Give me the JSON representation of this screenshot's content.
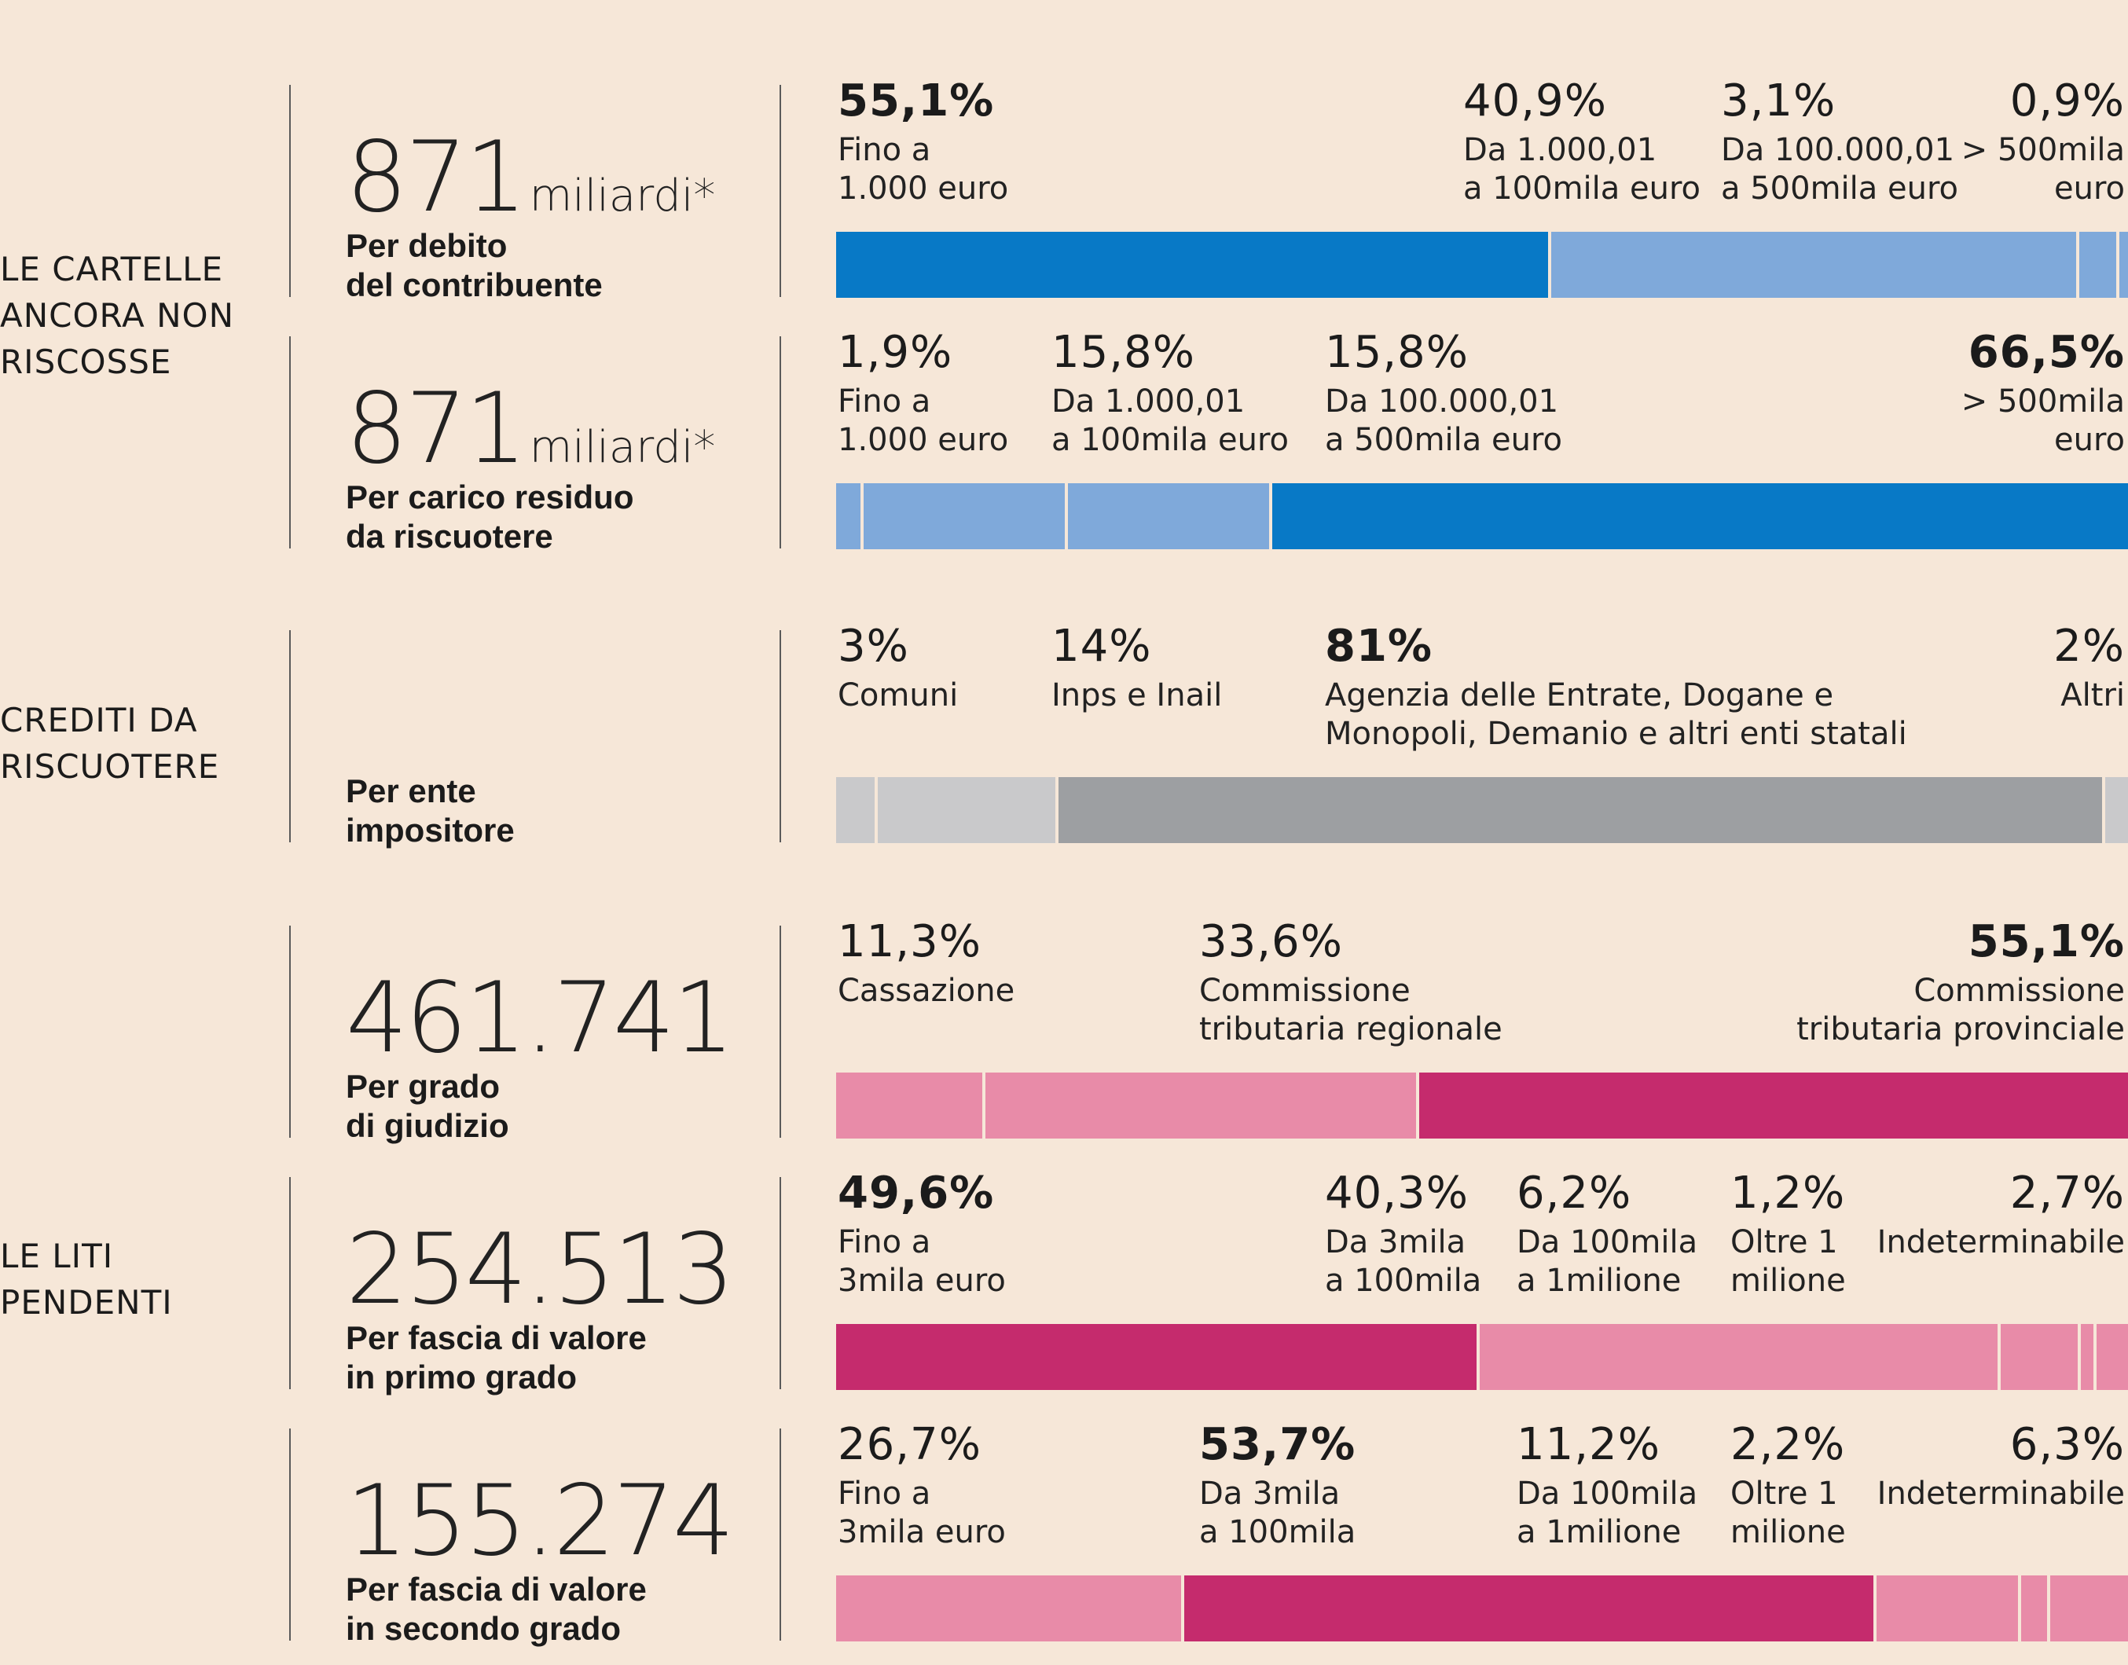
{
  "sections": [
    {
      "id": "cartelle",
      "title": "LE CARTELLE\nANCORA NON\nRISCOSSE",
      "rows": [
        {
          "big_number": "871",
          "unit": "miliardi*",
          "caption": "Per debito\ndel contribuente",
          "segments": [
            {
              "pct_label": "55,1%",
              "value": 55.1,
              "desc": "Fino a\n1.000 euro",
              "emphasis": true
            },
            {
              "pct_label": "40,9%",
              "value": 40.9,
              "desc": "Da 1.000,01\na 100mila euro",
              "emphasis": false
            },
            {
              "pct_label": "3,1%",
              "value": 3.1,
              "desc": "Da 100.000,01\na 500mila euro",
              "emphasis": false
            },
            {
              "pct_label": "0,9%",
              "value": 0.9,
              "desc": "> 500mila\neuro",
              "emphasis": false
            }
          ]
        },
        {
          "big_number": "871",
          "unit": "miliardi*",
          "caption": "Per carico residuo\nda riscuotere",
          "segments": [
            {
              "pct_label": "1,9%",
              "value": 1.9,
              "desc": "Fino a\n1.000 euro",
              "emphasis": false
            },
            {
              "pct_label": "15,8%",
              "value": 15.8,
              "desc": "Da 1.000,01\na 100mila euro",
              "emphasis": false
            },
            {
              "pct_label": "15,8%",
              "value": 15.8,
              "desc": "Da 100.000,01\na 500mila euro",
              "emphasis": false
            },
            {
              "pct_label": "66,5%",
              "value": 66.5,
              "desc": "> 500mila\neuro",
              "emphasis": true
            }
          ]
        }
      ]
    },
    {
      "id": "crediti",
      "title": "CREDITI DA\nRISCUOTERE",
      "rows": [
        {
          "big_number": "",
          "unit": "",
          "caption": "Per ente\nimpositore",
          "segments": [
            {
              "pct_label": "3%",
              "value": 3,
              "desc": "Comuni",
              "emphasis": false
            },
            {
              "pct_label": "14%",
              "value": 14,
              "desc": "Inps e Inail",
              "emphasis": false
            },
            {
              "pct_label": "81%",
              "value": 81,
              "desc": "Agenzia delle Entrate, Dogane e\nMonopoli, Demanio e altri enti statali",
              "emphasis": true
            },
            {
              "pct_label": "2%",
              "value": 2,
              "desc": "Altri",
              "emphasis": false
            }
          ]
        }
      ]
    },
    {
      "id": "liti",
      "title": "LE LITI\nPENDENTI",
      "rows": [
        {
          "big_number": "461.741",
          "unit": "",
          "caption": "Per grado\ndi giudizio",
          "segments": [
            {
              "pct_label": "11,3%",
              "value": 11.3,
              "desc": "Cassazione",
              "emphasis": false
            },
            {
              "pct_label": "33,6%",
              "value": 33.6,
              "desc": "Commissione\ntributaria regionale",
              "emphasis": false
            },
            {
              "pct_label": "55,1%",
              "value": 55.1,
              "desc": "Commissione\ntributaria provinciale",
              "emphasis": true
            }
          ]
        },
        {
          "big_number": "254.513",
          "unit": "",
          "caption": "Per fascia di valore\nin primo grado",
          "segments": [
            {
              "pct_label": "49,6%",
              "value": 49.6,
              "desc": "Fino a\n3mila euro",
              "emphasis": true
            },
            {
              "pct_label": "40,3%",
              "value": 40.3,
              "desc": "Da 3mila\na 100mila",
              "emphasis": false
            },
            {
              "pct_label": "6,2%",
              "value": 6.2,
              "desc": "Da 100mila\na 1milione",
              "emphasis": false
            },
            {
              "pct_label": "1,2%",
              "value": 1.2,
              "desc": "Oltre 1\nmilione",
              "emphasis": false
            },
            {
              "pct_label": "2,7%",
              "value": 2.7,
              "desc": "Indeterminabile",
              "emphasis": false
            }
          ]
        },
        {
          "big_number": "155.274",
          "unit": "",
          "caption": "Per fascia di valore\nin secondo grado",
          "segments": [
            {
              "pct_label": "26,7%",
              "value": 26.7,
              "desc": "Fino a\n3mila euro",
              "emphasis": false
            },
            {
              "pct_label": "53,7%",
              "value": 53.7,
              "desc": "Da 3mila\na 100mila",
              "emphasis": true
            },
            {
              "pct_label": "11,2%",
              "value": 11.2,
              "desc": "Da 100mila\na 1milione",
              "emphasis": false
            },
            {
              "pct_label": "2,2%",
              "value": 2.2,
              "desc": "Oltre 1\nmilione",
              "emphasis": false
            },
            {
              "pct_label": "6,3%",
              "value": 6.3,
              "desc": "Indeterminabile",
              "emphasis": false
            }
          ]
        }
      ]
    }
  ],
  "colors": {
    "background": "#f6e7d8",
    "blue_dark": "#0879c6",
    "blue_light": "#7fa9da",
    "gray_dark": "#9d9fa2",
    "gray_light": "#c9c9cb",
    "pink_dark": "#c52b6d",
    "pink_light": "#e88ba8"
  },
  "chart_data": [
    {
      "type": "bar",
      "stacked": true,
      "orientation": "horizontal",
      "caption": "Per debito del contribuente",
      "total": "871 miliardi*",
      "categories": [
        "Fino a 1.000 euro",
        "Da 1.000,01 a 100mila euro",
        "Da 100.000,01 a 500mila euro",
        "> 500mila euro"
      ],
      "values": [
        55.1,
        40.9,
        3.1,
        0.9
      ],
      "unit": "%"
    },
    {
      "type": "bar",
      "stacked": true,
      "orientation": "horizontal",
      "caption": "Per carico residuo da riscuotere",
      "total": "871 miliardi*",
      "categories": [
        "Fino a 1.000 euro",
        "Da 1.000,01 a 100mila euro",
        "Da 100.000,01 a 500mila euro",
        "> 500mila euro"
      ],
      "values": [
        1.9,
        15.8,
        15.8,
        66.5
      ],
      "unit": "%"
    },
    {
      "type": "bar",
      "stacked": true,
      "orientation": "horizontal",
      "caption": "Per ente impositore",
      "categories": [
        "Comuni",
        "Inps e Inail",
        "Agenzia delle Entrate, Dogane e Monopoli, Demanio e altri enti statali",
        "Altri"
      ],
      "values": [
        3,
        14,
        81,
        2
      ],
      "unit": "%"
    },
    {
      "type": "bar",
      "stacked": true,
      "orientation": "horizontal",
      "caption": "Per grado di giudizio",
      "total": "461.741",
      "categories": [
        "Cassazione",
        "Commissione tributaria regionale",
        "Commissione tributaria provinciale"
      ],
      "values": [
        11.3,
        33.6,
        55.1
      ],
      "unit": "%"
    },
    {
      "type": "bar",
      "stacked": true,
      "orientation": "horizontal",
      "caption": "Per fascia di valore in primo grado",
      "total": "254.513",
      "categories": [
        "Fino a 3mila euro",
        "Da 3mila a 100mila",
        "Da 100mila a 1milione",
        "Oltre 1 milione",
        "Indeterminabile"
      ],
      "values": [
        49.6,
        40.3,
        6.2,
        1.2,
        2.7
      ],
      "unit": "%"
    },
    {
      "type": "bar",
      "stacked": true,
      "orientation": "horizontal",
      "caption": "Per fascia di valore in secondo grado",
      "total": "155.274",
      "categories": [
        "Fino a 3mila euro",
        "Da 3mila a 100mila",
        "Da 100mila a 1milione",
        "Oltre 1 milione",
        "Indeterminabile"
      ],
      "values": [
        26.7,
        53.7,
        11.2,
        2.2,
        6.3
      ],
      "unit": "%"
    }
  ]
}
